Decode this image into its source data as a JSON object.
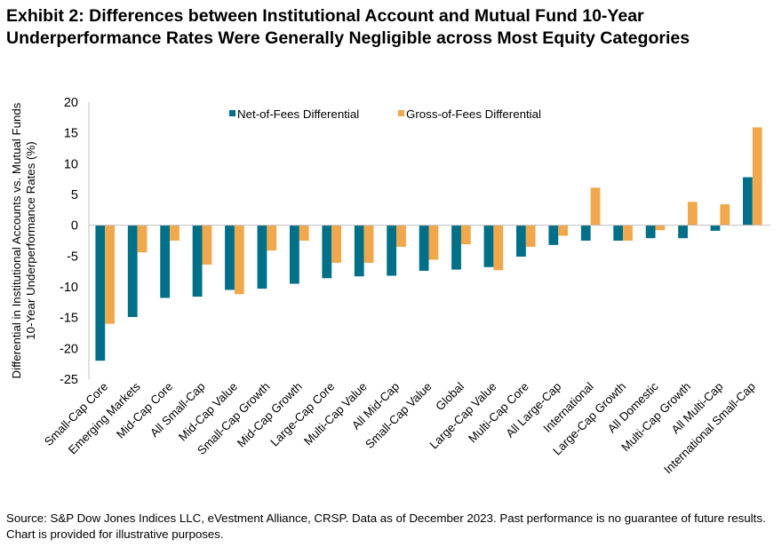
{
  "chart_data": {
    "type": "bar",
    "title": "Exhibit 2: Differences between Institutional Account and Mutual Fund 10-Year Underperformance Rates Were Generally Negligible across Most Equity Categories",
    "xlabel": "",
    "ylabel": "Differential in Institutional Accounts vs. Mutual Funds 10-Year Underperformance Rates (%)",
    "ylim": [
      -25,
      20
    ],
    "yticks": [
      "20",
      "15",
      "10",
      "5",
      "0",
      "-5",
      "-10",
      "-15",
      "-20",
      "-25"
    ],
    "grid": false,
    "legend_position": "top",
    "categories": [
      "Small-Cap Core",
      "Emerging Markets",
      "Mid-Cap Core",
      "All Small-Cap",
      "Mid-Cap Value",
      "Small-Cap Growth",
      "Mid-Cap Growth",
      "Large-Cap Core",
      "Multi-Cap Value",
      "All Mid-Cap",
      "Small-Cap Value",
      "Global",
      "Large-Cap Value",
      "Multi-Cap Core",
      "All Large-Cap",
      "International",
      "Large-Cap Growth",
      "All Domestic",
      "Multi-Cap Growth",
      "All Multi-Cap",
      "International Small-Cap"
    ],
    "series": [
      {
        "name": "Net-of-Fees Differential",
        "color": "#006F88",
        "values": [
          -22.0,
          -14.9,
          -11.8,
          -11.6,
          -10.5,
          -10.3,
          -9.5,
          -8.6,
          -8.3,
          -8.2,
          -7.4,
          -7.2,
          -6.8,
          -5.1,
          -3.2,
          -2.5,
          -2.5,
          -2.1,
          -2.1,
          -0.9,
          7.8
        ]
      },
      {
        "name": "Gross-of-Fees Differential",
        "color": "#F1A84C",
        "values": [
          -16.0,
          -4.4,
          -2.5,
          -6.4,
          -11.2,
          -4.1,
          -2.5,
          -6.1,
          -6.1,
          -3.5,
          -5.6,
          -3.1,
          -7.3,
          -3.5,
          -1.7,
          6.1,
          -2.5,
          -0.8,
          3.8,
          3.4,
          15.9
        ]
      }
    ]
  },
  "source": "Source: S&P Dow Jones Indices LLC, eVestment Alliance, CRSP. Data as of December 2023. Past performance is no guarantee of future results. Chart is provided for illustrative purposes."
}
